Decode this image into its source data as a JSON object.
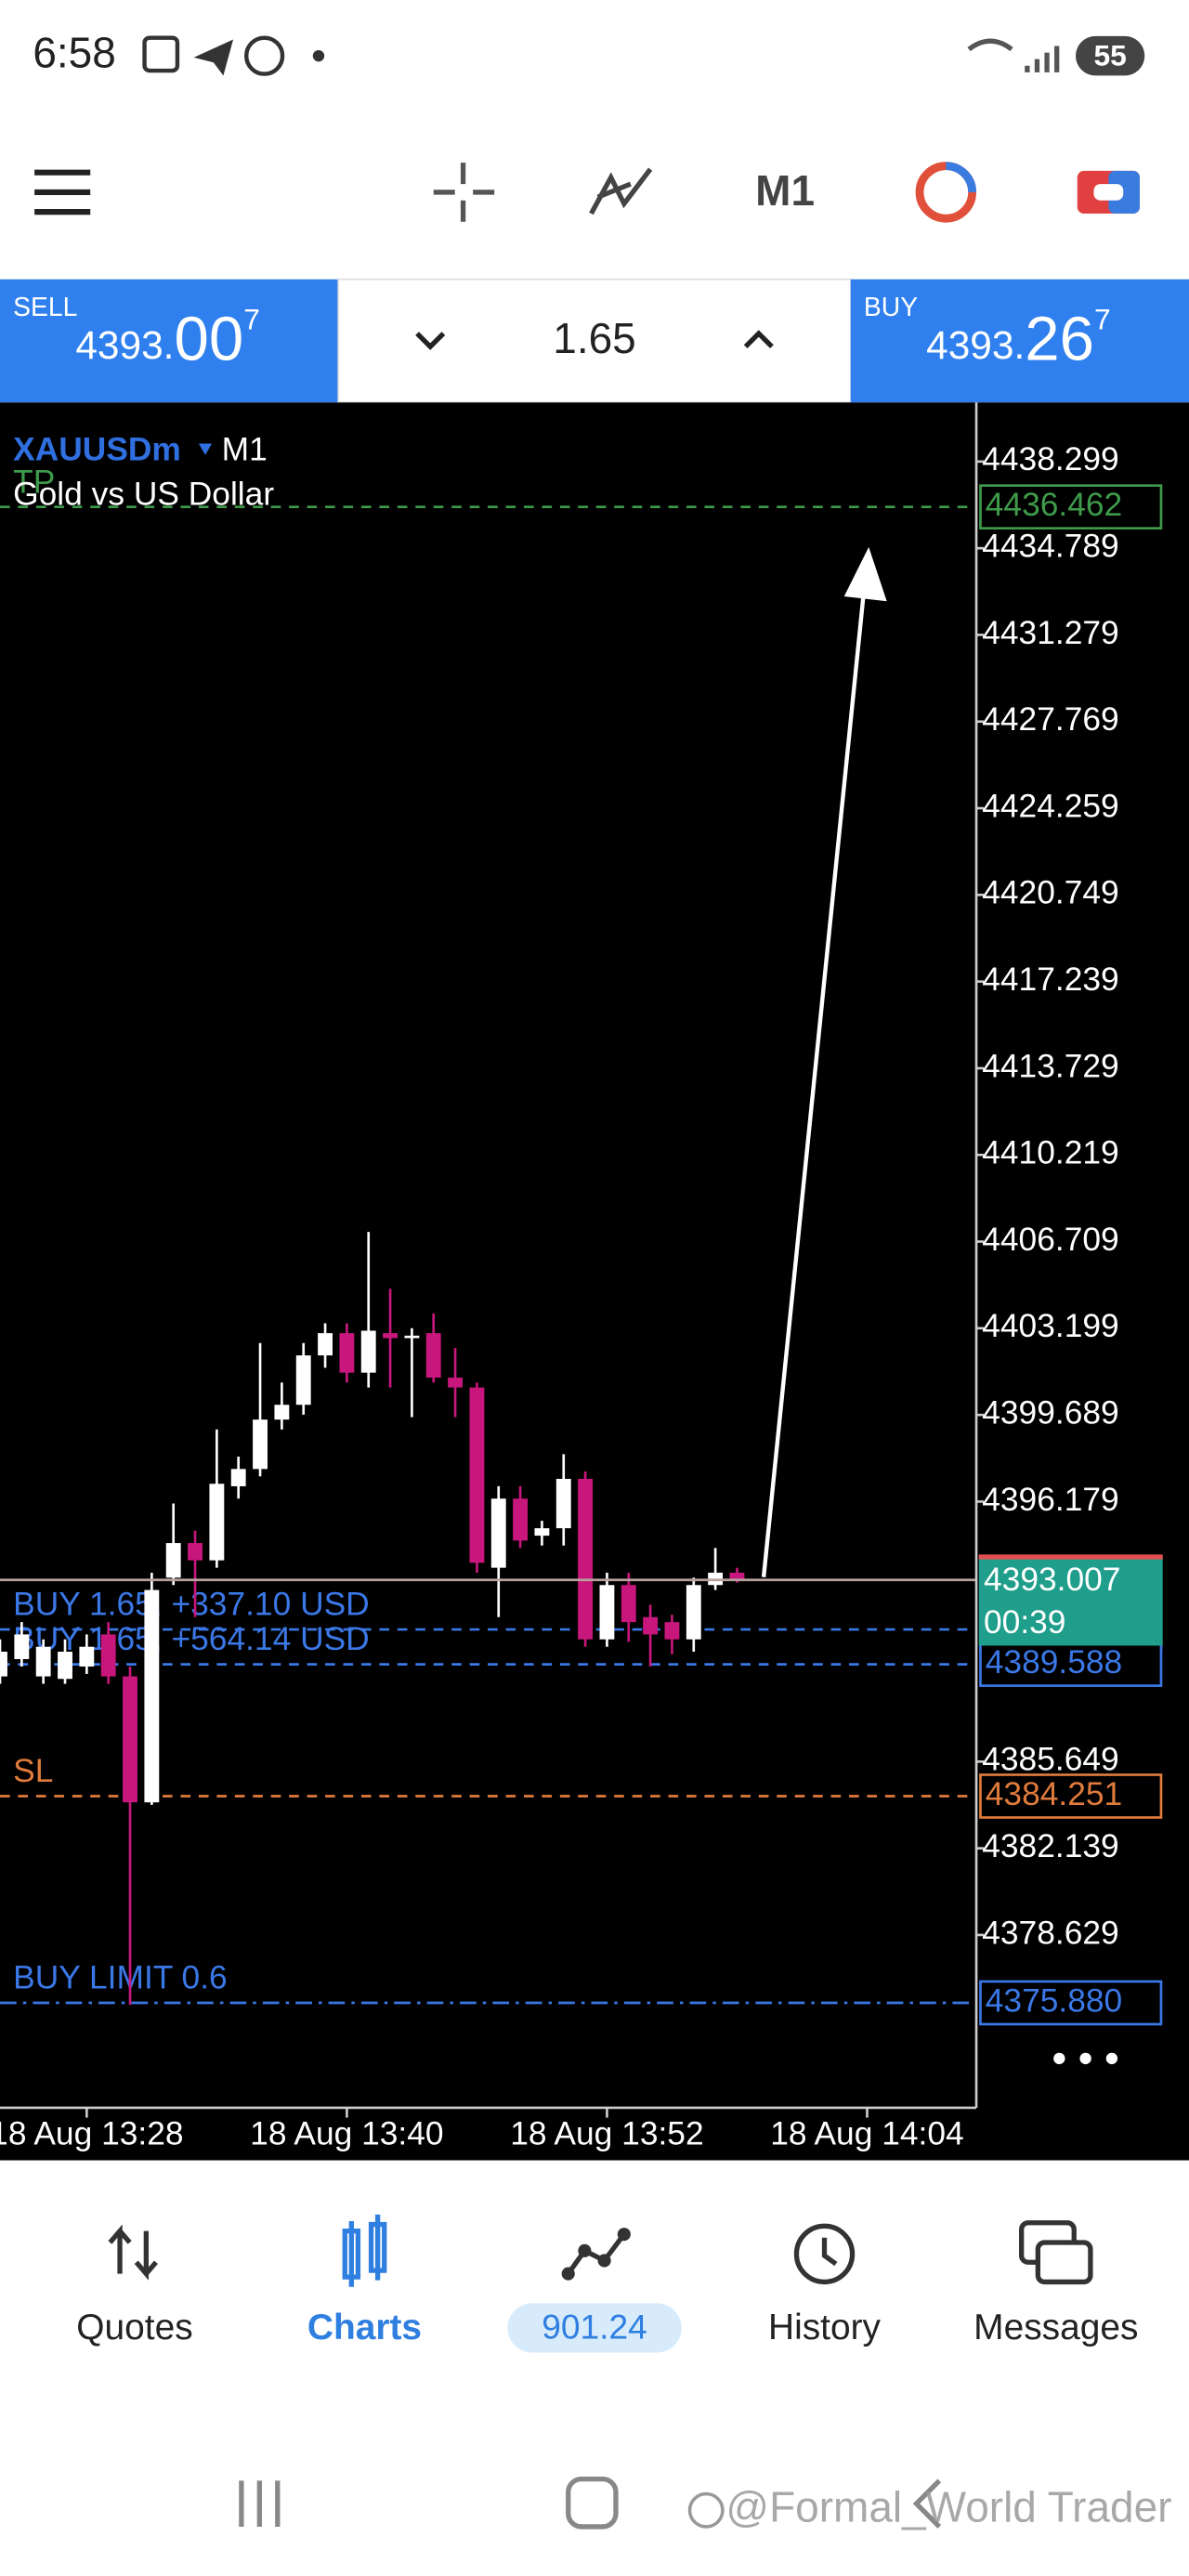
{
  "status_bar": {
    "time": "6:58",
    "battery": "55"
  },
  "toolbar": {
    "timeframe": "M1"
  },
  "trade_panel": {
    "sell": {
      "label": "SELL",
      "price": "4393.",
      "price_big": "00",
      "price_sup": "7"
    },
    "volume": "1.65",
    "buy": {
      "label": "BUY",
      "price": "4393.",
      "price_big": "26",
      "price_sup": "7"
    }
  },
  "chart_data": {
    "type": "candlestick",
    "symbol": "XAUUSDm",
    "timeframe": "M1",
    "title": "Gold vs US Dollar",
    "up_color": "#ffffff",
    "down_color": "#c8177c",
    "open": [
      4389.1,
      4389.8,
      4389.1,
      4389.0,
      4389.5,
      4390.8,
      4389.1,
      4384.0,
      4393.1,
      4394.5,
      4393.8,
      4396.8,
      4397.5,
      4399.5,
      4400.1,
      4402.1,
      4403.0,
      4401.4,
      4403.0,
      4402.8,
      4403.0,
      4401.2,
      4400.8,
      4393.5,
      4396.3,
      4394.8,
      4395.1,
      4397.1,
      4390.6,
      4392.8,
      4391.5,
      4391.3,
      4390.6,
      4392.8,
      4393.3
    ],
    "high": [
      4390.6,
      4391.3,
      4390.6,
      4390.6,
      4390.8,
      4391.3,
      4389.5,
      4393.3,
      4396.1,
      4395.0,
      4399.1,
      4398.0,
      4402.6,
      4401.0,
      4402.6,
      4403.4,
      4403.4,
      4407.1,
      4404.8,
      4403.2,
      4403.8,
      4402.4,
      4401.0,
      4396.8,
      4396.8,
      4395.4,
      4398.1,
      4397.4,
      4393.3,
      4393.3,
      4392.0,
      4391.6,
      4393.1,
      4394.3,
      4393.5
    ],
    "low": [
      4388.8,
      4389.5,
      4388.8,
      4388.8,
      4389.2,
      4388.8,
      4375.8,
      4383.9,
      4392.8,
      4391.5,
      4393.5,
      4396.3,
      4397.2,
      4399.1,
      4399.7,
      4401.6,
      4401.0,
      4400.8,
      4400.8,
      4399.6,
      4401.0,
      4399.6,
      4393.3,
      4391.5,
      4394.3,
      4394.4,
      4394.4,
      4390.3,
      4390.3,
      4390.5,
      4389.5,
      4390.0,
      4390.1,
      4392.6,
      4392.9
    ],
    "close": [
      4390.1,
      4390.8,
      4390.3,
      4390.1,
      4390.3,
      4389.1,
      4384.0,
      4392.6,
      4394.5,
      4393.8,
      4396.9,
      4397.5,
      4399.5,
      4400.1,
      4402.1,
      4403.0,
      4401.4,
      4403.1,
      4402.8,
      4402.9,
      4401.2,
      4400.8,
      4393.7,
      4396.3,
      4394.6,
      4395.1,
      4397.1,
      4390.6,
      4392.8,
      4391.3,
      4390.8,
      4390.6,
      4392.8,
      4393.3,
      4393.0
    ],
    "xlim": [
      0,
      45
    ],
    "xticks": [
      {
        "value": 4,
        "label": "18 Aug 13:28"
      },
      {
        "value": 16,
        "label": "18 Aug 13:40"
      },
      {
        "value": 28,
        "label": "18 Aug 13:52"
      },
      {
        "value": 40,
        "label": "18 Aug 14:04"
      }
    ],
    "ylim": [
      4371.63,
      4440.69
    ],
    "yticks": [
      4438.299,
      4434.789,
      4431.279,
      4427.769,
      4424.259,
      4420.749,
      4417.239,
      4413.729,
      4410.219,
      4406.709,
      4403.199,
      4399.689,
      4396.179,
      4385.649,
      4382.139,
      4378.629
    ],
    "bid": {
      "value": 4393.007,
      "timer": "00:39",
      "color": "#1f9e8c"
    },
    "levels": [
      {
        "name": "TP",
        "value": 4436.462,
        "color": "#3e9b4a",
        "dash": "dashed"
      },
      {
        "name": "BUY 1.65, +337.10 USD",
        "value": 4391.0,
        "color": "#3b78e7",
        "dash": "dashed"
      },
      {
        "name": "BUY 1.65, +564.14 USD",
        "value": 4389.588,
        "color": "#3b78e7",
        "dash": "dashed"
      },
      {
        "name": "SL",
        "value": 4384.251,
        "color": "#e07b3c",
        "dash": "dashed"
      },
      {
        "name": "BUY LIMIT 0.6",
        "value": 4375.88,
        "value_label": "4375.880",
        "color": "#3b78e7",
        "dash": "dashdot"
      }
    ]
  },
  "nav": {
    "items": [
      "Quotes",
      "Charts",
      "901.24",
      "History",
      "Messages"
    ]
  },
  "watermark": "@Formal_World Trader"
}
